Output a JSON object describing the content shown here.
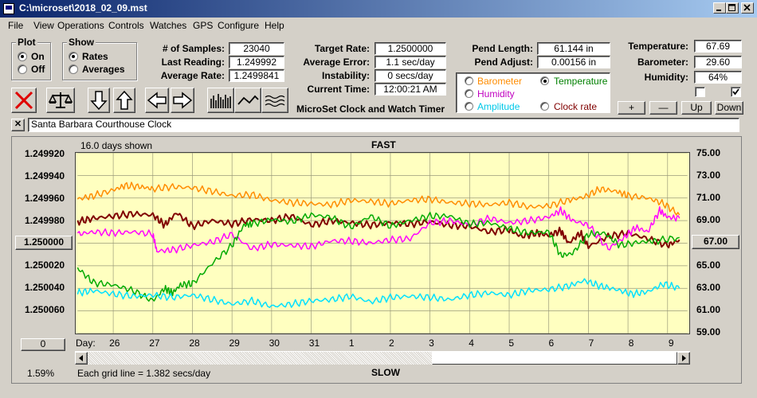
{
  "window": {
    "title": "C:\\microset\\2018_02_09.mst"
  },
  "menu": [
    "File",
    "View",
    "Operations",
    "Controls",
    "Watches",
    "GPS",
    "Configure",
    "Help"
  ],
  "plot_group": {
    "title": "Plot",
    "on": "On",
    "off": "Off",
    "selected": "On"
  },
  "show_group": {
    "title": "Show",
    "rates": "Rates",
    "averages": "Averages",
    "selected": "Rates"
  },
  "stats": {
    "samples_label": "# of Samples:",
    "samples": "23040",
    "last_label": "Last Reading:",
    "last": "1.249992",
    "avg_label": "Average Rate:",
    "avg": "1.2499841"
  },
  "rate": {
    "target_label": "Target Rate:",
    "target": "1.2500000",
    "error_label": "Average Error:",
    "error": "1.1 sec/day",
    "instab_label": "Instability:",
    "instab": "0 secs/day",
    "time_label": "Current Time:",
    "time": "12:00:21 AM"
  },
  "app_name": "MicroSet Clock and Watch Timer",
  "pend": {
    "length_label": "Pend Length:",
    "length": "61.144 in",
    "adjust_label": "Pend Adjust:",
    "adjust": "0.00156 in"
  },
  "channels": {
    "barometer": "Barometer",
    "temperature": "Temperature",
    "humidity": "Humidity",
    "amplitude": "Amplitude",
    "clock_rate": "Clock rate",
    "selected": "Temperature"
  },
  "env": {
    "temp_label": "Temperature:",
    "temp": "67.69",
    "baro_label": "Barometer:",
    "baro": "29.60",
    "hum_label": "Humidity:",
    "hum": "64%"
  },
  "scale_buttons": {
    "plus": "+",
    "minus": "—",
    "up": "Up",
    "down": "Down"
  },
  "note": {
    "close": "✕",
    "text": "Santa Barbara Courthouse Clock"
  },
  "chart_data": {
    "type": "line",
    "top_label": "FAST",
    "bottom_label": "SLOW",
    "days_shown": "16.0 days shown",
    "grid_note": "Each grid line = 1.382 secs/day",
    "left_ticks": [
      "1.249920",
      "1.249940",
      "1.249960",
      "1.249980",
      "1.250000",
      "1.250020",
      "1.250040",
      "1.250060"
    ],
    "left_button": "1.250000",
    "right_ticks": [
      "75.00",
      "73.00",
      "71.00",
      "69.00",
      "67.00",
      "65.00",
      "63.00",
      "61.00",
      "59.00"
    ],
    "right_button": "67.00",
    "left_ylim": [
      1.24992,
      1.25008
    ],
    "right_ylim": [
      59,
      75
    ],
    "day_label": "Day:",
    "days": [
      "26",
      "27",
      "28",
      "29",
      "30",
      "31",
      "1",
      "2",
      "3",
      "4",
      "5",
      "6",
      "7",
      "8",
      "9"
    ],
    "x_range": [
      25.1,
      40.5
    ],
    "bottom_left_button": "0",
    "percent": "1.59%",
    "series": [
      {
        "color": "#ff8c00",
        "axis": "right",
        "x": [
          25.1,
          25.5,
          26.0,
          26.3,
          26.7,
          27.0,
          27.5,
          28.0,
          28.5,
          29.0,
          29.5,
          30.0,
          30.5,
          31.0,
          31.5,
          32.0,
          32.5,
          33.0,
          33.5,
          34.0,
          34.5,
          35.0,
          35.5,
          36.0,
          36.5,
          37.0,
          37.5,
          37.9,
          38.3,
          38.7,
          39.0,
          39.5,
          39.9,
          40.3
        ],
        "y": [
          70.9,
          71.2,
          71.7,
          72.1,
          72.0,
          71.8,
          72.0,
          71.9,
          71.6,
          71.2,
          71.3,
          70.8,
          70.6,
          70.5,
          70.4,
          70.8,
          70.7,
          70.5,
          70.8,
          70.9,
          70.6,
          70.5,
          70.4,
          70.6,
          70.2,
          70.3,
          70.8,
          71.1,
          71.8,
          71.6,
          71.2,
          71.0,
          70.5,
          69.5
        ]
      },
      {
        "color": "#800000",
        "axis": "right",
        "x": [
          25.1,
          25.5,
          26.0,
          26.5,
          27.0,
          27.3,
          27.6,
          28.0,
          28.5,
          29.0,
          29.5,
          30.0,
          30.5,
          31.0,
          31.5,
          32.0,
          32.5,
          33.0,
          33.5,
          34.0,
          34.5,
          35.0,
          35.5,
          36.0,
          36.3,
          36.7,
          37.0,
          37.3,
          37.5,
          37.8,
          38.0,
          38.5,
          39.0,
          39.5,
          40.0,
          40.3
        ],
        "y": [
          68.9,
          69.2,
          69.4,
          69.6,
          69.5,
          68.6,
          69.7,
          68.5,
          69.0,
          68.7,
          69.1,
          69.0,
          69.4,
          68.6,
          69.0,
          68.8,
          68.6,
          68.8,
          68.7,
          68.9,
          68.6,
          68.5,
          68.0,
          68.2,
          67.6,
          67.9,
          67.7,
          68.1,
          67.0,
          67.9,
          66.7,
          67.6,
          67.9,
          67.4,
          66.8,
          67.3
        ]
      },
      {
        "color": "#ff00ff",
        "axis": "right",
        "x": [
          25.1,
          25.5,
          26.0,
          26.5,
          27.0,
          27.1,
          27.5,
          28.0,
          28.5,
          29.0,
          29.5,
          30.0,
          30.5,
          31.0,
          31.5,
          32.0,
          32.5,
          33.0,
          33.5,
          34.0,
          34.5,
          35.0,
          35.5,
          36.0,
          36.5,
          37.0,
          37.3,
          37.6,
          38.0,
          38.5,
          38.9,
          39.2,
          39.5,
          39.8,
          40.0,
          40.3
        ],
        "y": [
          67.8,
          68.0,
          67.9,
          68.0,
          67.8,
          66.3,
          66.4,
          66.8,
          67.1,
          67.8,
          66.5,
          66.9,
          66.8,
          66.7,
          67.2,
          67.2,
          67.0,
          67.3,
          67.4,
          68.8,
          69.0,
          68.6,
          69.2,
          68.8,
          69.0,
          69.3,
          69.9,
          69.0,
          68.6,
          66.5,
          67.5,
          68.4,
          68.0,
          69.9,
          69.3,
          69.2
        ]
      },
      {
        "color": "#00aa00",
        "axis": "right",
        "x": [
          25.1,
          25.5,
          26.0,
          26.5,
          27.0,
          27.3,
          27.5,
          27.7,
          28.0,
          28.5,
          29.0,
          29.3,
          29.5,
          30.0,
          30.5,
          31.0,
          31.5,
          32.0,
          32.5,
          33.0,
          33.5,
          34.0,
          34.5,
          35.0,
          35.5,
          36.0,
          36.5,
          37.0,
          37.3,
          37.6,
          38.0,
          38.4,
          38.8,
          39.3,
          39.7,
          40.3
        ],
        "y": [
          64.8,
          63.5,
          63.3,
          62.8,
          61.9,
          63.0,
          62.6,
          63.3,
          63.4,
          65.2,
          66.8,
          68.6,
          68.7,
          69.1,
          68.9,
          69.5,
          69.3,
          68.4,
          69.4,
          68.5,
          69.0,
          69.4,
          69.4,
          68.7,
          68.8,
          68.3,
          67.9,
          68.0,
          65.9,
          66.1,
          67.8,
          67.9,
          66.8,
          67.1,
          67.2,
          67.5
        ]
      },
      {
        "color": "#00e0ff",
        "axis": "right",
        "x": [
          25.1,
          25.5,
          26.0,
          26.5,
          27.0,
          27.5,
          28.0,
          28.5,
          29.0,
          29.5,
          30.0,
          30.5,
          31.0,
          31.5,
          32.0,
          32.5,
          33.0,
          33.5,
          34.0,
          34.5,
          35.0,
          35.5,
          36.0,
          36.5,
          37.0,
          37.5,
          37.9,
          38.3,
          38.7,
          39.1,
          39.5,
          39.9,
          40.3
        ],
        "y": [
          62.6,
          62.8,
          62.5,
          62.3,
          62.4,
          62.2,
          62.4,
          62.0,
          61.6,
          61.9,
          61.4,
          61.6,
          61.9,
          62.0,
          62.3,
          61.8,
          62.2,
          62.3,
          62.2,
          62.0,
          62.4,
          62.6,
          62.4,
          62.8,
          62.9,
          63.2,
          63.7,
          63.2,
          62.9,
          62.5,
          62.7,
          63.4,
          63.0
        ]
      }
    ]
  }
}
